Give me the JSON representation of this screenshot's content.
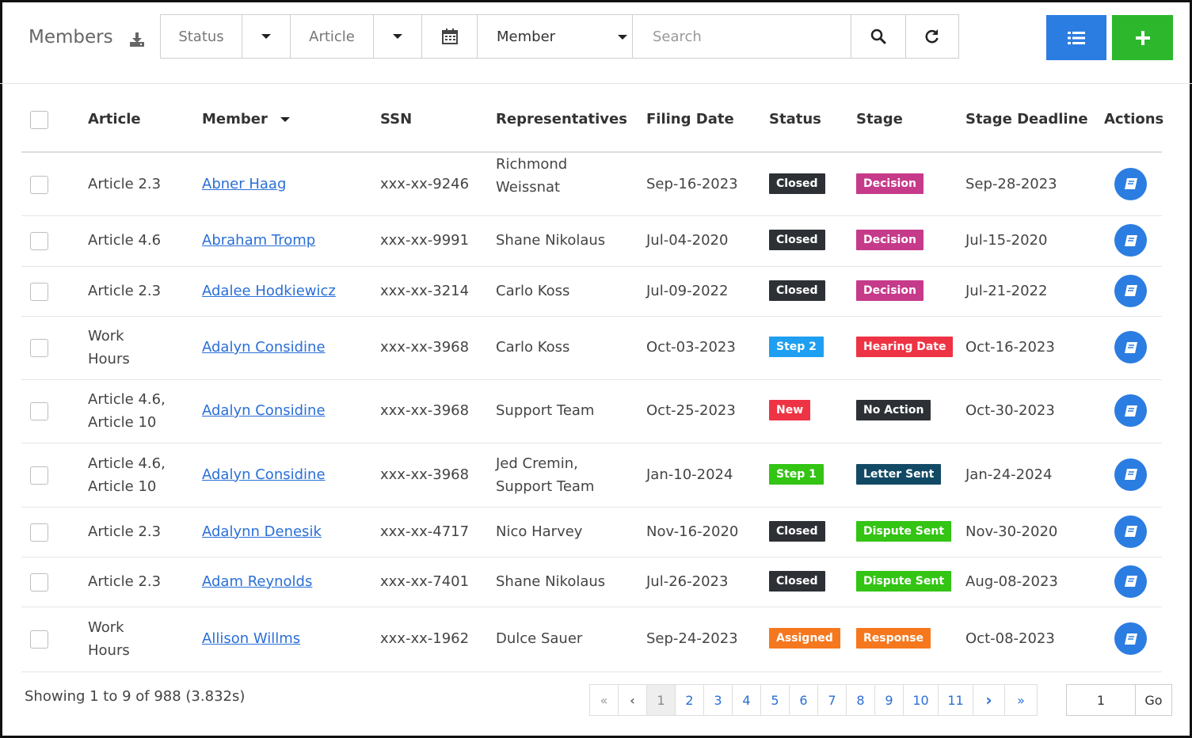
{
  "header": {
    "title": "Members",
    "filters": {
      "status_placeholder": "Status",
      "article_placeholder": "Article",
      "member_select": "Member",
      "search_placeholder": "Search"
    },
    "colors": {
      "primary": "#2b7de1",
      "add": "#2cb72c"
    }
  },
  "table": {
    "columns": {
      "article": "Article",
      "member": "Member",
      "ssn": "SSN",
      "representatives": "Representatives",
      "filing_date": "Filing Date",
      "status": "Status",
      "stage": "Stage",
      "stage_deadline": "Stage Deadline",
      "actions": "Actions"
    },
    "rows": [
      {
        "article1": "Article 2.3",
        "article2": "",
        "member": "Abner Haag",
        "ssn": "xxx-xx-9246",
        "rep1": "Richmond",
        "rep2": "Weissnat",
        "filing": "Sep-16-2023",
        "status": "Closed",
        "status_color": "#2d3136",
        "stage": "Decision",
        "stage_color": "#c63a8a",
        "deadline": "Sep-28-2023"
      },
      {
        "article1": "Article 4.6",
        "article2": "",
        "member": "Abraham Tromp",
        "ssn": "xxx-xx-9991",
        "rep1": "Shane Nikolaus",
        "rep2": "",
        "filing": "Jul-04-2020",
        "status": "Closed",
        "status_color": "#2d3136",
        "stage": "Decision",
        "stage_color": "#c63a8a",
        "deadline": "Jul-15-2020"
      },
      {
        "article1": "Article 2.3",
        "article2": "",
        "member": "Adalee Hodkiewicz",
        "ssn": "xxx-xx-3214",
        "rep1": "Carlo Koss",
        "rep2": "",
        "filing": "Jul-09-2022",
        "status": "Closed",
        "status_color": "#2d3136",
        "stage": "Decision",
        "stage_color": "#c63a8a",
        "deadline": "Jul-21-2022"
      },
      {
        "article1": "Work",
        "article2": "Hours",
        "member": "Adalyn Considine",
        "ssn": "xxx-xx-3968",
        "rep1": "Carlo Koss",
        "rep2": "",
        "filing": "Oct-03-2023",
        "status": "Step 2",
        "status_color": "#1e9ff2",
        "stage": "Hearing Date",
        "stage_color": "#ee3344",
        "deadline": "Oct-16-2023"
      },
      {
        "article1": "Article 4.6,",
        "article2": "Article 10",
        "member": "Adalyn Considine",
        "ssn": "xxx-xx-3968",
        "rep1": "Support Team",
        "rep2": "",
        "filing": "Oct-25-2023",
        "status": "New",
        "status_color": "#ee3344",
        "stage": "No Action",
        "stage_color": "#2d3136",
        "deadline": "Oct-30-2023"
      },
      {
        "article1": "Article 4.6,",
        "article2": "Article 10",
        "member": "Adalyn Considine",
        "ssn": "xxx-xx-3968",
        "rep1": "Jed Cremin,",
        "rep2": "Support Team",
        "filing": "Jan-10-2024",
        "status": "Step 1",
        "status_color": "#33c414",
        "stage": "Letter Sent",
        "stage_color": "#124a66",
        "deadline": "Jan-24-2024"
      },
      {
        "article1": "Article 2.3",
        "article2": "",
        "member": "Adalynn Denesik",
        "ssn": "xxx-xx-4717",
        "rep1": "Nico Harvey",
        "rep2": "",
        "filing": "Nov-16-2020",
        "status": "Closed",
        "status_color": "#2d3136",
        "stage": "Dispute Sent",
        "stage_color": "#33c414",
        "deadline": "Nov-30-2020"
      },
      {
        "article1": "Article 2.3",
        "article2": "",
        "member": "Adam Reynolds",
        "ssn": "xxx-xx-7401",
        "rep1": "Shane Nikolaus",
        "rep2": "",
        "filing": "Jul-26-2023",
        "status": "Closed",
        "status_color": "#2d3136",
        "stage": "Dispute Sent",
        "stage_color": "#33c414",
        "deadline": "Aug-08-2023"
      },
      {
        "article1": "Work",
        "article2": "Hours",
        "member": "Allison Willms",
        "ssn": "xxx-xx-1962",
        "rep1": "Dulce Sauer",
        "rep2": "",
        "filing": "Sep-24-2023",
        "status": "Assigned",
        "status_color": "#f5781e",
        "stage": "Response",
        "stage_color": "#f5781e",
        "deadline": "Oct-08-2023"
      }
    ]
  },
  "footer": {
    "showing": "Showing 1 to 9 of 988 (3.832s)",
    "pages": [
      "1",
      "2",
      "3",
      "4",
      "5",
      "6",
      "7",
      "8",
      "9",
      "10",
      "11"
    ],
    "current_page": "1",
    "goto_value": "1",
    "go_label": "Go"
  }
}
